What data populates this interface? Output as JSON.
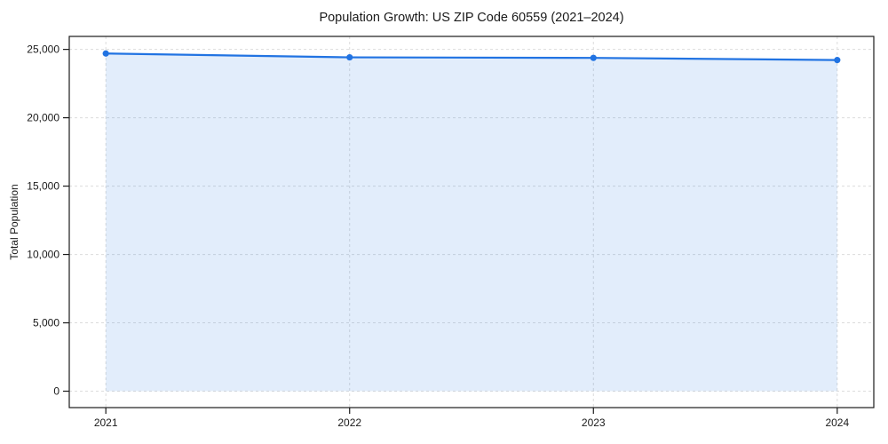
{
  "chart": {
    "title": "Population Growth: US ZIP Code 60559 (2021–2024)",
    "ylabel": "Total Population"
  },
  "chart_data": {
    "type": "area",
    "title": "Population Growth: US ZIP Code 60559 (2021–2024)",
    "xlabel": "",
    "ylabel": "Total Population",
    "x": [
      2021,
      2022,
      2023,
      2024
    ],
    "xtick_labels": [
      "2021",
      "2022",
      "2023",
      "2024"
    ],
    "series": [
      {
        "name": "Total Population",
        "values": [
          24700,
          24420,
          24380,
          24220
        ]
      }
    ],
    "fill_to": 0,
    "xlim": [
      2020.85,
      2024.15
    ],
    "ylim": [
      -1200,
      25950
    ],
    "yticks": {
      "values": [
        0,
        5000,
        10000,
        15000,
        20000,
        25000
      ],
      "labels": [
        "0",
        "5,000",
        "10,000",
        "15,000",
        "20,000",
        "25,000"
      ]
    },
    "grid": true,
    "grid_style": "dashed",
    "legend_position": "none",
    "colors": {
      "line": "#2173e2",
      "marker": "#2173e2",
      "area_fill": "rgba(33,115,226,0.13)",
      "grid": "#dcdcdc",
      "spine": "#1a1a1a",
      "tick": "#1a1a1a",
      "background": "#ffffff",
      "plot_background": "#ffffff"
    }
  }
}
